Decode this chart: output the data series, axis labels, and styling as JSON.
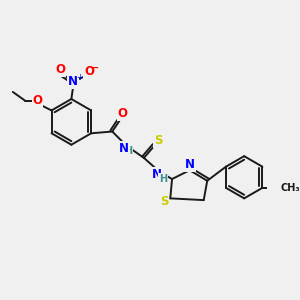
{
  "bg_color": "#f0f0f0",
  "bond_color": "#1a1a1a",
  "atom_colors": {
    "N": "#0000ff",
    "O": "#ff0000",
    "S": "#cccc00",
    "C": "#1a1a1a",
    "H": "#3a9090"
  }
}
